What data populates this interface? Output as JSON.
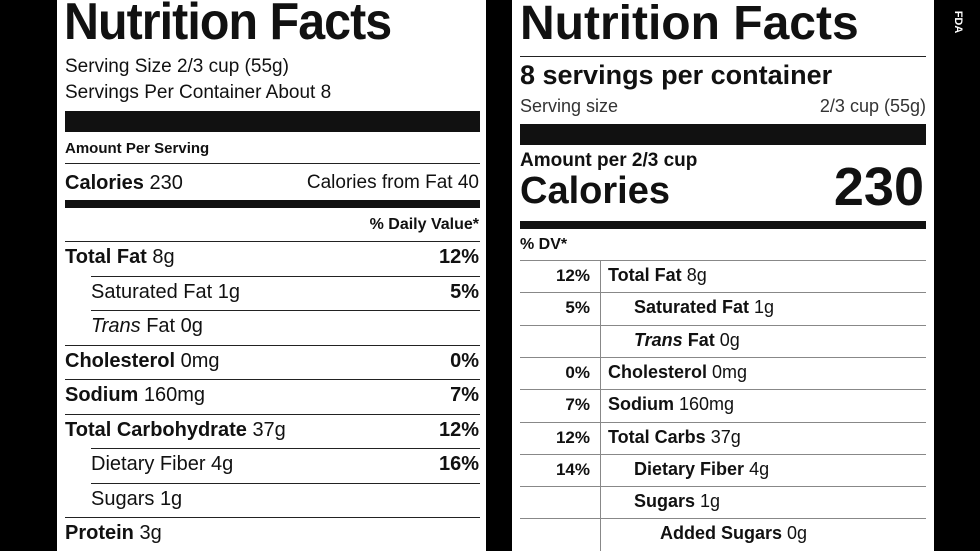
{
  "old_label": {
    "title": "Nutrition Facts",
    "serving_size": "Serving Size 2/3 cup (55g)",
    "servings_per_container": "Servings Per Container About 8",
    "amount_per_serving": "Amount Per Serving",
    "calories_label": "Calories",
    "calories_value": "230",
    "calories_from_fat": "Calories from Fat 40",
    "daily_value_header": "% Daily Value*",
    "rows": [
      {
        "name": "Total Fat",
        "amount": "8g",
        "dv": "12%",
        "bold": true,
        "indent": 0,
        "italic": false
      },
      {
        "name": "Saturated Fat",
        "amount": "1g",
        "dv": "5%",
        "bold": false,
        "indent": 1,
        "italic": false
      },
      {
        "name": "Trans",
        "suffix": " Fat",
        "amount": "0g",
        "dv": "",
        "bold": false,
        "indent": 1,
        "italic": true
      },
      {
        "name": "Cholesterol",
        "amount": "0mg",
        "dv": "0%",
        "bold": true,
        "indent": 0,
        "italic": false
      },
      {
        "name": "Sodium",
        "amount": "160mg",
        "dv": "7%",
        "bold": true,
        "indent": 0,
        "italic": false
      },
      {
        "name": "Total Carbohydrate",
        "amount": "37g",
        "dv": "12%",
        "bold": true,
        "indent": 0,
        "italic": false
      },
      {
        "name": "Dietary Fiber",
        "amount": "4g",
        "dv": "16%",
        "bold": false,
        "indent": 1,
        "italic": false
      },
      {
        "name": "Sugars",
        "amount": "1g",
        "dv": "",
        "bold": false,
        "indent": 1,
        "italic": false
      },
      {
        "name": "Protein",
        "amount": "3g",
        "dv": "",
        "bold": true,
        "indent": 0,
        "italic": false
      }
    ]
  },
  "new_label": {
    "title": "Nutrition Facts",
    "servings_per_container": "8 servings per container",
    "serving_size_label": "Serving size",
    "serving_size_value": "2/3 cup (55g)",
    "amount_per": "Amount per 2/3 cup",
    "calories_label": "Calories",
    "calories_value": "230",
    "dv_header": "% DV*",
    "rows": [
      {
        "dv": "12%",
        "name": "Total Fat",
        "amount": "8g",
        "indent": 0,
        "italic": false
      },
      {
        "dv": "5%",
        "name": "Saturated Fat",
        "amount": "1g",
        "indent": 1,
        "italic": false
      },
      {
        "dv": "",
        "name": "Trans",
        "suffix": " Fat",
        "amount": "0g",
        "indent": 1,
        "italic": true
      },
      {
        "dv": "0%",
        "name": "Cholesterol",
        "amount": "0mg",
        "indent": 0,
        "italic": false
      },
      {
        "dv": "7%",
        "name": "Sodium",
        "amount": "160mg",
        "indent": 0,
        "italic": false
      },
      {
        "dv": "12%",
        "name": "Total Carbs",
        "amount": "37g",
        "indent": 0,
        "italic": false
      },
      {
        "dv": "14%",
        "name": "Dietary Fiber",
        "amount": "4g",
        "indent": 1,
        "italic": false
      },
      {
        "dv": "",
        "name": "Sugars",
        "amount": "1g",
        "indent": 1,
        "italic": false
      },
      {
        "dv": "",
        "name": "Added Sugars",
        "amount": "0g",
        "indent": 2,
        "italic": false
      }
    ]
  },
  "watermark": "FDA"
}
